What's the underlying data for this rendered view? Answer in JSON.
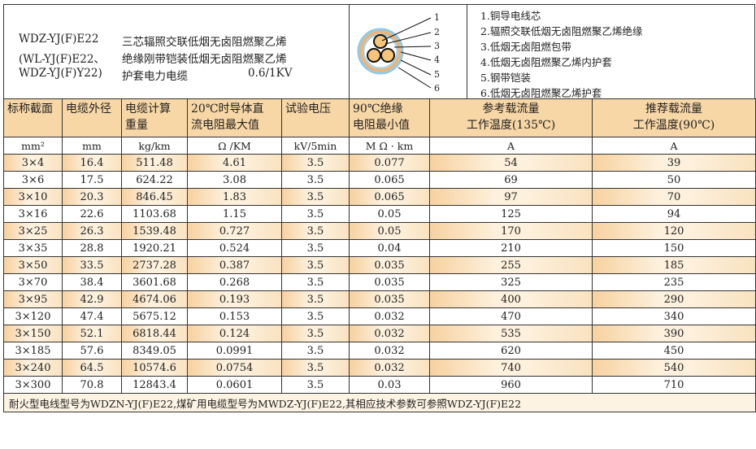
{
  "model": {
    "lines": [
      "WDZ-YJ(F)E22",
      "(WL-YJ(F)E22、",
      "WDZ-YJ(F)Y22)"
    ],
    "desc": [
      "三芯辐照交联低烟无卤阻燃聚乙烯",
      "绝缘刚带铠装低烟无卤阻燃聚乙烯",
      "护套电力电缆"
    ],
    "voltage": "0.6/1KV"
  },
  "diagram": {
    "labels": [
      "1",
      "2",
      "3",
      "4",
      "5",
      "6"
    ],
    "colors": {
      "core": "#f6c47a",
      "ring_orange": "#e8b47a",
      "ring_blue": "#8ec9e8"
    }
  },
  "legend": [
    "1.铜导电线芯",
    "2.辐照交联低烟无卤阻燃聚乙烯绝缘",
    "3.低烟无卤阻燃包带",
    "4.低烟无卤阻燃聚乙烯内护套",
    "5.钢带铠装",
    "6.低烟无卤阻燃聚乙烯护套"
  ],
  "table": {
    "headers": [
      [
        "标称截面",
        ""
      ],
      [
        "电缆外径",
        ""
      ],
      [
        "电缆计算",
        "重量"
      ],
      [
        "20℃时导体直",
        "流电阻最大值"
      ],
      [
        "试验电压",
        ""
      ],
      [
        "90℃绝缘",
        "电阻最小值"
      ],
      [
        "参考载流量",
        "工作温度(135℃)"
      ],
      [
        "推荐载流量",
        "工作温度(90℃)"
      ]
    ],
    "units": [
      "mm²",
      "mm",
      "kg/km",
      "Ω /KM",
      "kV/5min",
      "M Ω · km",
      "A",
      "A"
    ],
    "rows": [
      [
        "3×4",
        "16.4",
        "511.48",
        "4.61",
        "3.5",
        "0.077",
        "54",
        "39"
      ],
      [
        "3×6",
        "17.5",
        "624.22",
        "3.08",
        "3.5",
        "0.065",
        "69",
        "50"
      ],
      [
        "3×10",
        "20.3",
        "846.45",
        "1.83",
        "3.5",
        "0.065",
        "97",
        "70"
      ],
      [
        "3×16",
        "22.6",
        "1103.68",
        "1.15",
        "3.5",
        "0.05",
        "125",
        "94"
      ],
      [
        "3×25",
        "26.3",
        "1539.48",
        "0.727",
        "3.5",
        "0.05",
        "170",
        "120"
      ],
      [
        "3×35",
        "28.8",
        "1920.21",
        "0.524",
        "3.5",
        "0.04",
        "210",
        "150"
      ],
      [
        "3×50",
        "33.5",
        "2737.28",
        "0.387",
        "3.5",
        "0.035",
        "255",
        "185"
      ],
      [
        "3×70",
        "38.4",
        "3601.68",
        "0.268",
        "3.5",
        "0.035",
        "325",
        "235"
      ],
      [
        "3×95",
        "42.9",
        "4674.06",
        "0.193",
        "3.5",
        "0.035",
        "400",
        "290"
      ],
      [
        "3×120",
        "47.4",
        "5675.12",
        "0.153",
        "3.5",
        "0.032",
        "470",
        "340"
      ],
      [
        "3×150",
        "52.1",
        "6818.44",
        "0.124",
        "3.5",
        "0.032",
        "535",
        "390"
      ],
      [
        "3×185",
        "57.6",
        "8349.05",
        "0.0991",
        "3.5",
        "0.032",
        "620",
        "450"
      ],
      [
        "3×240",
        "64.5",
        "10574.6",
        "0.0754",
        "3.5",
        "0.032",
        "740",
        "540"
      ],
      [
        "3×300",
        "70.8",
        "12843.4",
        "0.0601",
        "3.5",
        "0.03",
        "960",
        "710"
      ]
    ],
    "footer": "耐火型电线型号为WDZN-YJ(F)E22,煤矿用电缆型号为MWDZ-YJ(F)E22,其相应技术参数可参照WDZ-YJ(F)E22"
  }
}
